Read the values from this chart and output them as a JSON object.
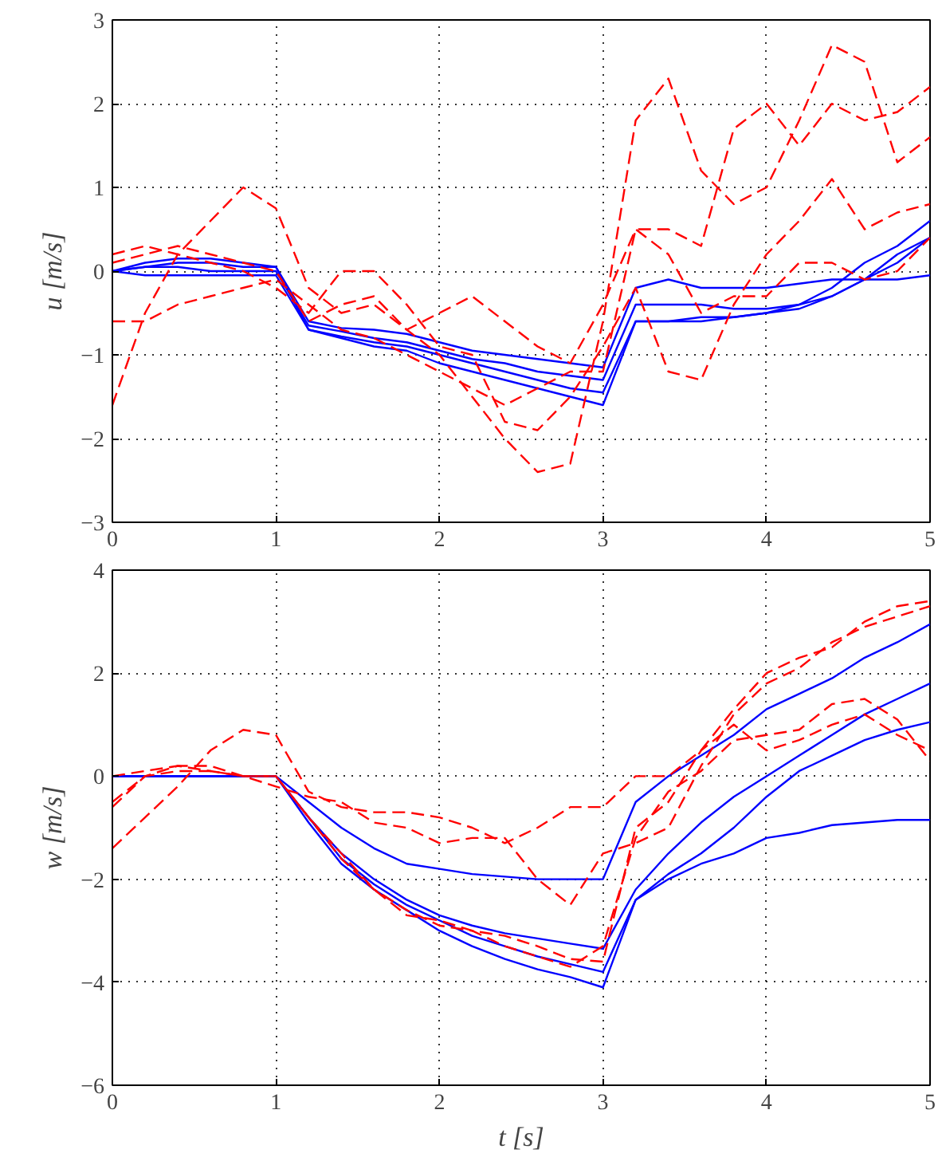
{
  "chart_data": [
    {
      "type": "line",
      "ylabel": "u [m/s]",
      "xlim": [
        0,
        5
      ],
      "ylim": [
        -3,
        3
      ],
      "xticks": [
        0,
        1,
        2,
        3,
        4,
        5
      ],
      "yticks": [
        -3,
        -2,
        -1,
        0,
        1,
        2,
        3
      ],
      "grid": true,
      "x": [
        0,
        0.2,
        0.4,
        0.6,
        0.8,
        1.0,
        1.2,
        1.4,
        1.6,
        1.8,
        2.0,
        2.2,
        2.4,
        2.6,
        2.8,
        3.0,
        3.2,
        3.4,
        3.6,
        3.8,
        4.0,
        4.2,
        4.4,
        4.6,
        4.8,
        5.0
      ],
      "series": [
        {
          "color": "#0000ff",
          "line_style": "solid",
          "values": [
            0,
            0.05,
            0.1,
            0.1,
            0.05,
            0.05,
            -0.6,
            -0.68,
            -0.7,
            -0.75,
            -0.85,
            -0.95,
            -1.0,
            -1.05,
            -1.1,
            -1.15,
            -0.2,
            -0.1,
            -0.2,
            -0.2,
            -0.2,
            -0.15,
            -0.1,
            -0.1,
            -0.1,
            -0.05
          ]
        },
        {
          "color": "#0000ff",
          "line_style": "solid",
          "values": [
            0,
            0.05,
            0.05,
            0.0,
            0.0,
            0.0,
            -0.65,
            -0.72,
            -0.8,
            -0.85,
            -0.95,
            -1.05,
            -1.1,
            -1.2,
            -1.25,
            -1.3,
            -0.4,
            -0.4,
            -0.4,
            -0.45,
            -0.45,
            -0.4,
            -0.3,
            -0.1,
            0.1,
            0.4
          ]
        },
        {
          "color": "#0000ff",
          "line_style": "solid",
          "values": [
            0,
            -0.05,
            -0.05,
            -0.05,
            -0.05,
            -0.05,
            -0.7,
            -0.78,
            -0.85,
            -0.9,
            -1.0,
            -1.1,
            -1.2,
            -1.3,
            -1.4,
            -1.45,
            -0.6,
            -0.6,
            -0.55,
            -0.55,
            -0.5,
            -0.45,
            -0.3,
            -0.1,
            0.2,
            0.4
          ]
        },
        {
          "color": "#0000ff",
          "line_style": "solid",
          "values": [
            0,
            0.1,
            0.15,
            0.15,
            0.1,
            0.05,
            -0.7,
            -0.8,
            -0.9,
            -0.95,
            -1.1,
            -1.2,
            -1.3,
            -1.4,
            -1.5,
            -1.6,
            -0.6,
            -0.6,
            -0.6,
            -0.55,
            -0.5,
            -0.4,
            -0.2,
            0.1,
            0.3,
            0.6
          ]
        },
        {
          "color": "#ff0000",
          "line_style": "dashed",
          "values": [
            -1.6,
            -0.5,
            0.2,
            0.6,
            1.0,
            0.75,
            -0.2,
            -0.5,
            -0.4,
            -0.7,
            -1.0,
            -1.5,
            -2.0,
            -2.4,
            -2.3,
            -0.6,
            1.8,
            2.3,
            1.2,
            0.8,
            1.0,
            1.8,
            2.7,
            2.5,
            1.3,
            1.6
          ]
        },
        {
          "color": "#ff0000",
          "line_style": "dashed",
          "values": [
            -0.6,
            -0.6,
            -0.4,
            -0.3,
            -0.2,
            -0.1,
            -0.4,
            -0.7,
            -0.8,
            -1.0,
            -1.2,
            -1.4,
            -1.6,
            -1.4,
            -1.2,
            -1.2,
            0.5,
            0.5,
            0.3,
            1.7,
            2.0,
            1.5,
            2.0,
            1.8,
            1.9,
            2.2
          ]
        },
        {
          "color": "#ff0000",
          "line_style": "dashed",
          "values": [
            0.2,
            0.3,
            0.2,
            0.1,
            0.0,
            -0.2,
            -0.5,
            0.0,
            0.0,
            -0.4,
            -0.9,
            -1.0,
            -1.8,
            -1.9,
            -1.5,
            -0.9,
            -0.2,
            -1.2,
            -1.3,
            -0.4,
            0.2,
            0.6,
            1.1,
            0.5,
            0.7,
            0.8
          ]
        },
        {
          "color": "#ff0000",
          "line_style": "dashed",
          "values": [
            0.1,
            0.2,
            0.3,
            0.2,
            0.1,
            0.0,
            -0.6,
            -0.4,
            -0.3,
            -0.7,
            -0.5,
            -0.3,
            -0.6,
            -0.9,
            -1.1,
            -0.4,
            0.5,
            0.2,
            -0.5,
            -0.3,
            -0.3,
            0.1,
            0.1,
            -0.1,
            0.0,
            0.4
          ]
        }
      ]
    },
    {
      "type": "line",
      "xlabel": "t [s]",
      "ylabel": "w [m/s]",
      "xlim": [
        0,
        5
      ],
      "ylim": [
        -6,
        4
      ],
      "xticks": [
        0,
        1,
        2,
        3,
        4,
        5
      ],
      "yticks": [
        -6,
        -4,
        -2,
        0,
        2,
        4
      ],
      "grid": true,
      "x": [
        0,
        0.2,
        0.4,
        0.6,
        0.8,
        1.0,
        1.2,
        1.4,
        1.6,
        1.8,
        2.0,
        2.2,
        2.4,
        2.6,
        2.8,
        3.0,
        3.2,
        3.4,
        3.6,
        3.8,
        4.0,
        4.2,
        4.4,
        4.6,
        4.8,
        5.0
      ],
      "series": [
        {
          "color": "#0000ff",
          "line_style": "solid",
          "values": [
            0,
            0,
            0,
            0,
            0,
            0,
            -0.5,
            -1.0,
            -1.4,
            -1.7,
            -1.8,
            -1.9,
            -1.95,
            -2.0,
            -2.0,
            -2.0,
            -0.5,
            0.0,
            0.4,
            0.8,
            1.3,
            1.6,
            1.9,
            2.3,
            2.6,
            2.95
          ]
        },
        {
          "color": "#0000ff",
          "line_style": "solid",
          "values": [
            0,
            0,
            0,
            0,
            0,
            0,
            -0.8,
            -1.5,
            -2.0,
            -2.4,
            -2.7,
            -2.9,
            -3.05,
            -3.15,
            -3.25,
            -3.35,
            -2.2,
            -1.5,
            -0.9,
            -0.4,
            0.0,
            0.4,
            0.8,
            1.2,
            1.5,
            1.8
          ]
        },
        {
          "color": "#0000ff",
          "line_style": "solid",
          "values": [
            0,
            0,
            0,
            0,
            0,
            0,
            -0.8,
            -1.6,
            -2.1,
            -2.5,
            -2.8,
            -3.1,
            -3.3,
            -3.5,
            -3.65,
            -3.8,
            -2.4,
            -1.9,
            -1.5,
            -1.0,
            -0.4,
            0.1,
            0.4,
            0.7,
            0.9,
            1.05
          ]
        },
        {
          "color": "#0000ff",
          "line_style": "solid",
          "values": [
            0,
            0,
            0,
            0,
            0,
            0,
            -0.9,
            -1.7,
            -2.2,
            -2.6,
            -3.0,
            -3.3,
            -3.55,
            -3.75,
            -3.9,
            -4.1,
            -2.4,
            -2.0,
            -1.7,
            -1.5,
            -1.2,
            -1.1,
            -0.95,
            -0.9,
            -0.85,
            -0.85
          ]
        },
        {
          "color": "#ff0000",
          "line_style": "dashed",
          "values": [
            -1.4,
            -0.8,
            -0.2,
            0.5,
            0.9,
            0.8,
            -0.3,
            -0.6,
            -0.7,
            -0.7,
            -0.8,
            -1.0,
            -1.3,
            -1.0,
            -0.6,
            -0.6,
            0.0,
            0.0,
            0.5,
            1.3,
            2.0,
            2.3,
            2.5,
            3.0,
            3.3,
            3.4
          ]
        },
        {
          "color": "#ff0000",
          "line_style": "dashed",
          "values": [
            -0.6,
            0.0,
            0.2,
            0.2,
            0.0,
            -0.2,
            -0.4,
            -0.5,
            -0.9,
            -1.0,
            -1.3,
            -1.2,
            -1.2,
            -2.0,
            -2.5,
            -1.5,
            -1.3,
            -1.0,
            0.2,
            1.2,
            1.8,
            2.1,
            2.6,
            2.9,
            3.1,
            3.3
          ]
        },
        {
          "color": "#ff0000",
          "line_style": "dashed",
          "values": [
            -0.5,
            0.0,
            0.1,
            0.1,
            0.0,
            0.0,
            -0.8,
            -1.5,
            -2.2,
            -2.7,
            -2.8,
            -3.0,
            -3.1,
            -3.3,
            -3.55,
            -3.6,
            -1.0,
            -0.5,
            0.5,
            1.0,
            0.5,
            0.7,
            1.0,
            1.2,
            0.8,
            0.5
          ]
        },
        {
          "color": "#ff0000",
          "line_style": "dashed",
          "values": [
            0.0,
            0.1,
            0.2,
            0.1,
            0.0,
            0.0,
            -0.8,
            -1.6,
            -2.2,
            -2.6,
            -2.9,
            -3.0,
            -3.3,
            -3.5,
            -3.7,
            -3.3,
            -1.2,
            -0.3,
            0.1,
            0.7,
            0.8,
            0.9,
            1.4,
            1.5,
            1.1,
            0.3
          ]
        }
      ]
    }
  ]
}
